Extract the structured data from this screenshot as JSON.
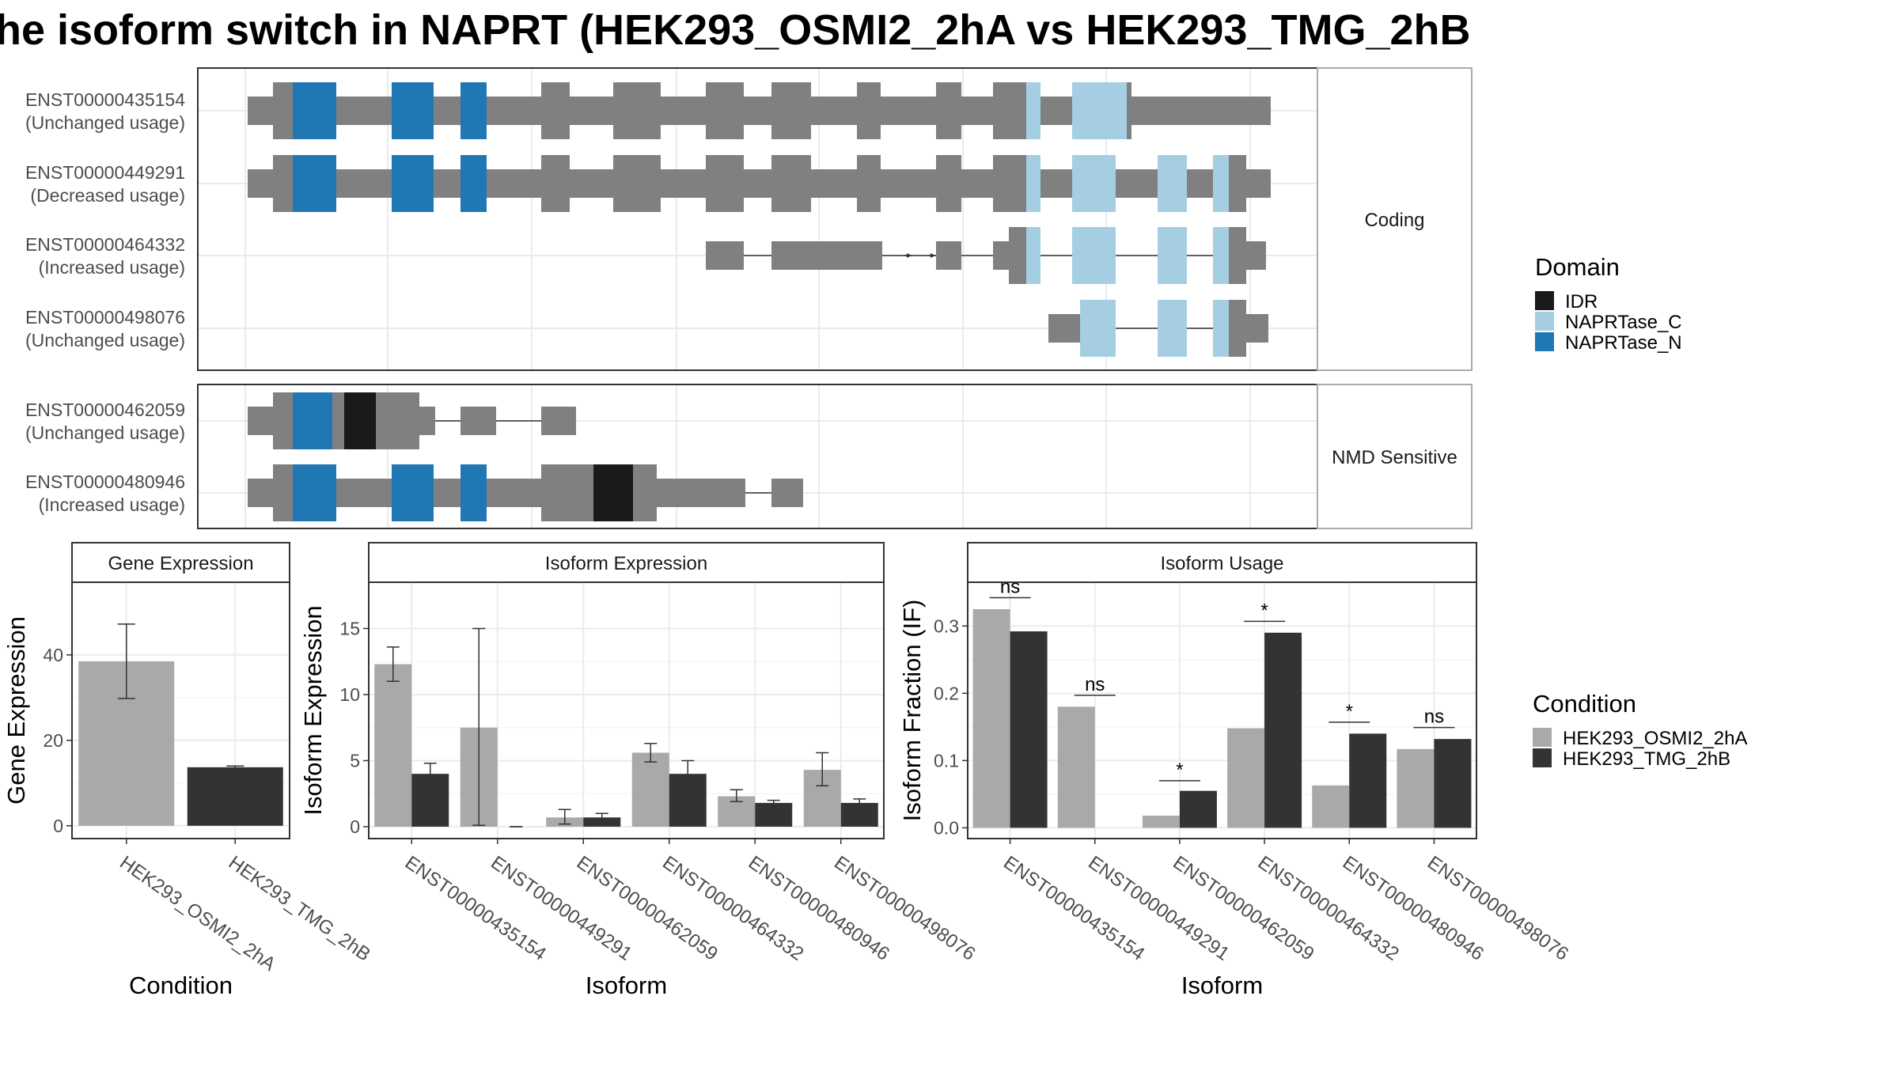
{
  "title": "he isoform switch in NAPRT (HEK293_OSMI2_2hA vs HEK293_TMG_2hB",
  "colors": {
    "IDR": "#1a1a1a",
    "NAPRTase_C": "#a6cee3",
    "NAPRTase_N": "#1f78b4",
    "exon": "#808080",
    "cond1": "#a9a9a9",
    "cond2": "#333333"
  },
  "structure": {
    "facets": [
      {
        "label": "Coding",
        "tracks": [
          {
            "id": "ENST00000435154",
            "usage": "(Unchanged usage)"
          },
          {
            "id": "ENST00000449291",
            "usage": "(Decreased usage)"
          },
          {
            "id": "ENST00000464332",
            "usage": "(Increased usage)"
          },
          {
            "id": "ENST00000498076",
            "usage": "(Unchanged usage)"
          }
        ]
      },
      {
        "label": "NMD Sensitive",
        "tracks": [
          {
            "id": "ENST00000462059",
            "usage": "(Unchanged usage)"
          },
          {
            "id": "ENST00000480946",
            "usage": "(Increased usage)"
          }
        ]
      }
    ],
    "domain_legend": {
      "title": "Domain",
      "items": [
        "IDR",
        "NAPRTase_C",
        "NAPRTase_N"
      ]
    }
  },
  "chart_data": [
    {
      "type": "bar",
      "title": "Gene Expression",
      "xlabel": "Condition",
      "ylabel": "Gene Expression",
      "categories": [
        "HEK293_OSMI2_2hA",
        "HEK293_TMG_2hB"
      ],
      "values": [
        38.5,
        13.7
      ],
      "error": [
        [
          29.8,
          47.2
        ],
        [
          13.4,
          14.0
        ]
      ],
      "ylim": [
        -3,
        57
      ],
      "yticks": [
        0,
        20,
        40
      ]
    },
    {
      "type": "bar",
      "title": "Isoform Expression",
      "xlabel": "Isoform",
      "ylabel": "Isoform Expression",
      "categories": [
        "ENST00000435154",
        "ENST00000449291",
        "ENST00000462059",
        "ENST00000464332",
        "ENST00000480946",
        "ENST00000498076"
      ],
      "series": [
        {
          "name": "HEK293_OSMI2_2hA",
          "values": [
            12.3,
            7.5,
            0.7,
            5.6,
            2.3,
            4.3
          ],
          "error": [
            [
              11.0,
              13.6
            ],
            [
              0.1,
              15.0
            ],
            [
              0.2,
              1.3
            ],
            [
              4.9,
              6.3
            ],
            [
              1.9,
              2.8
            ],
            [
              3.1,
              5.6
            ]
          ]
        },
        {
          "name": "HEK293_TMG_2hB",
          "values": [
            4.0,
            0.0,
            0.7,
            4.0,
            1.8,
            1.8
          ],
          "error": [
            [
              3.3,
              4.8
            ],
            [
              0.0,
              0.0
            ],
            [
              0.4,
              1.0
            ],
            [
              3.0,
              5.0
            ],
            [
              1.6,
              2.0
            ],
            [
              1.5,
              2.1
            ]
          ]
        }
      ],
      "ylim": [
        -0.9,
        18.5
      ],
      "yticks": [
        0,
        5,
        10,
        15
      ]
    },
    {
      "type": "bar",
      "title": "Isoform Usage",
      "xlabel": "Isoform",
      "ylabel": "Isoform Fraction (IF)",
      "categories": [
        "ENST00000435154",
        "ENST00000449291",
        "ENST00000462059",
        "ENST00000464332",
        "ENST00000480946",
        "ENST00000498076"
      ],
      "series": [
        {
          "name": "HEK293_OSMI2_2hA",
          "values": [
            0.325,
            0.18,
            0.018,
            0.148,
            0.063,
            0.117
          ]
        },
        {
          "name": "HEK293_TMG_2hB",
          "values": [
            0.292,
            0.0,
            0.055,
            0.29,
            0.14,
            0.132
          ]
        }
      ],
      "significance": [
        {
          "label": "ns",
          "y": 0.342
        },
        {
          "label": "ns",
          "y": 0.197
        },
        {
          "label": "*",
          "y": 0.07
        },
        {
          "label": "*",
          "y": 0.307
        },
        {
          "label": "*",
          "y": 0.157
        },
        {
          "label": "ns",
          "y": 0.149
        }
      ],
      "ylim": [
        -0.016,
        0.365
      ],
      "yticks": [
        "0.0",
        "0.1",
        "0.2",
        "0.3"
      ]
    }
  ],
  "condition_legend": {
    "title": "Condition",
    "items": [
      "HEK293_OSMI2_2hA",
      "HEK293_TMG_2hB"
    ]
  }
}
